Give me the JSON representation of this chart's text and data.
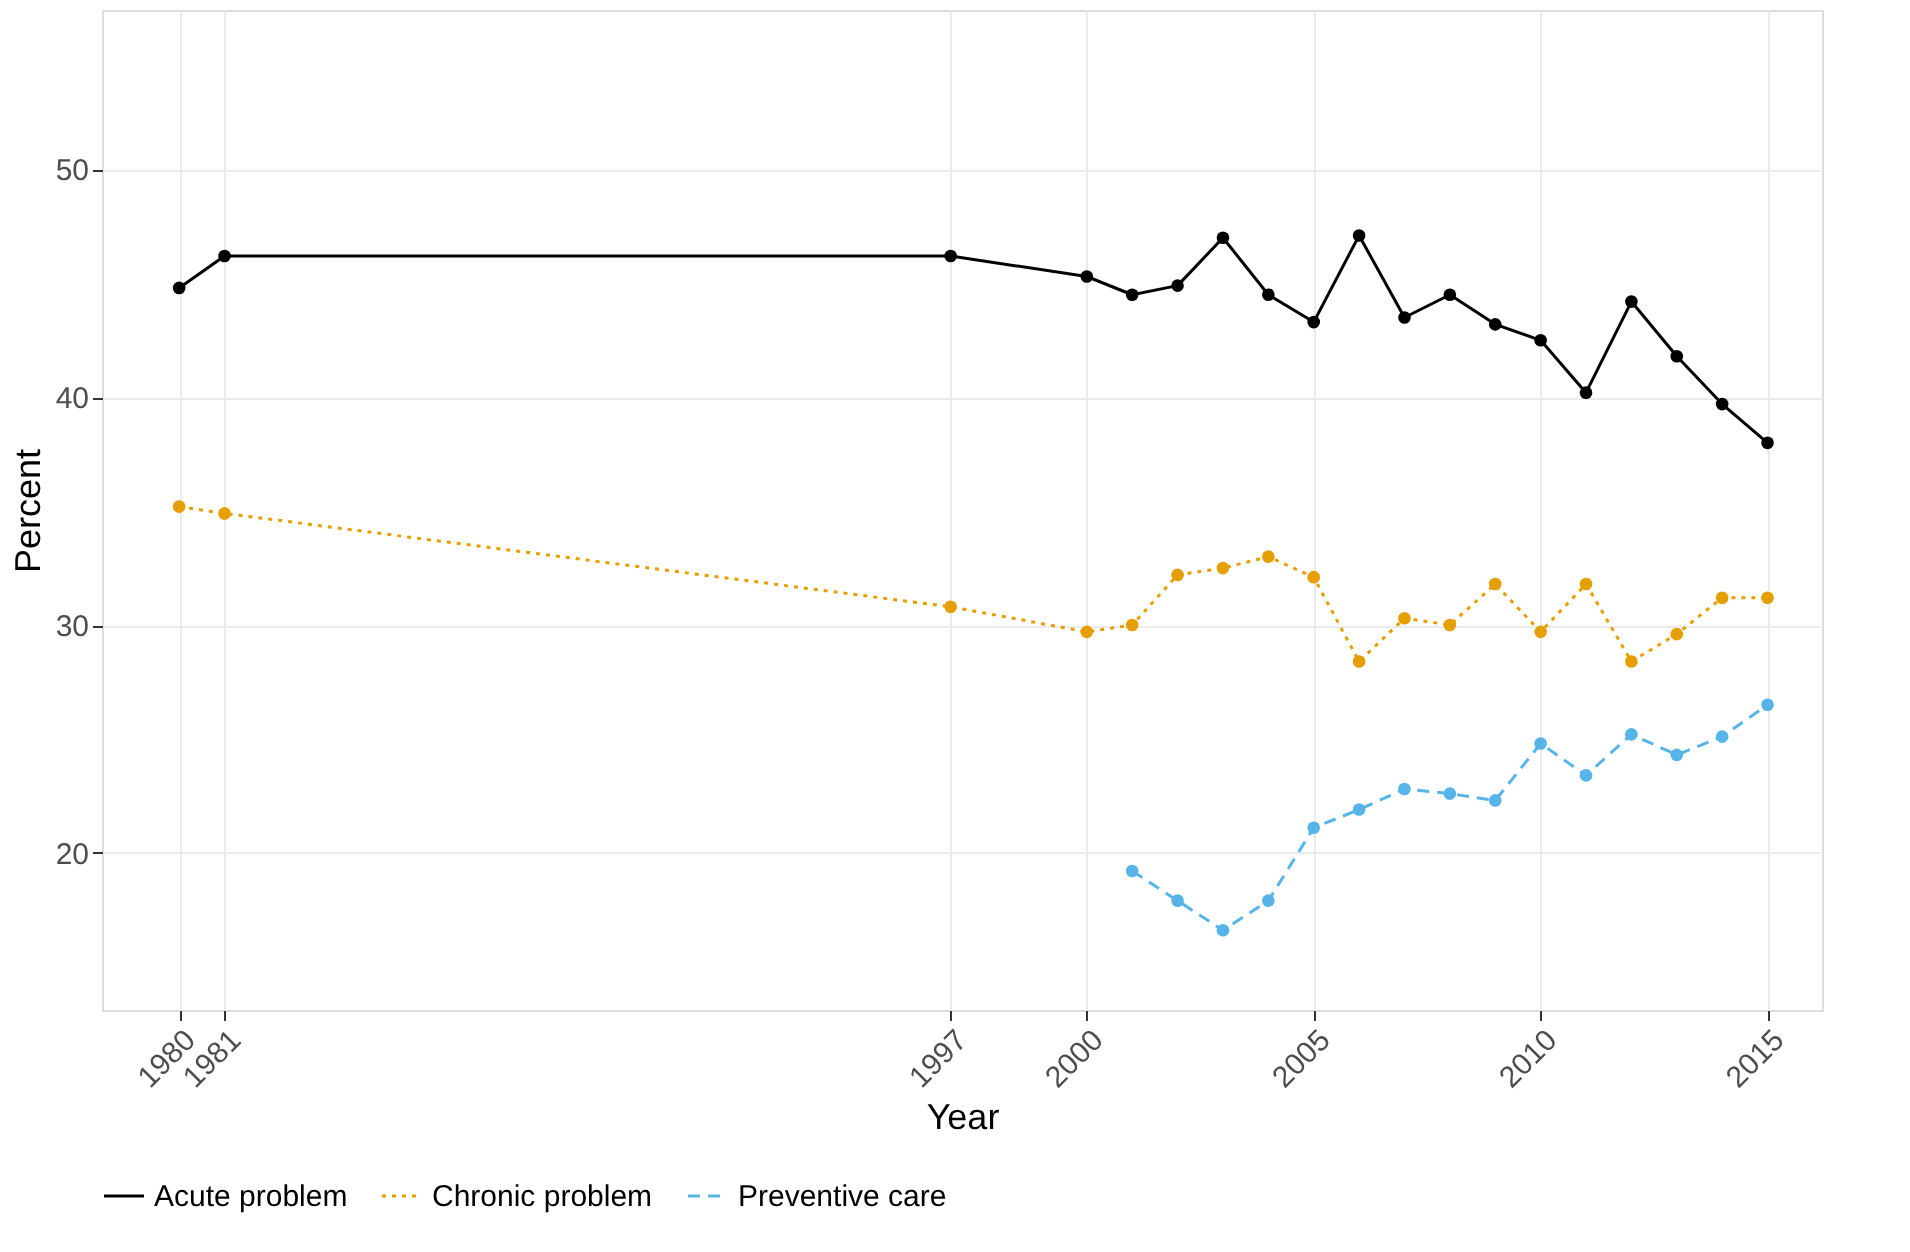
{
  "chart_data": {
    "type": "line",
    "xlabel": "Year",
    "ylabel": "Percent",
    "x": [
      1980,
      1981,
      1997,
      2000,
      2001,
      2002,
      2003,
      2004,
      2005,
      2006,
      2007,
      2008,
      2009,
      2010,
      2011,
      2012,
      2013,
      2014,
      2015
    ],
    "series": [
      {
        "name": "Acute problem",
        "color": "#000000",
        "line_style": "solid",
        "values": [
          44.8,
          46.2,
          46.2,
          45.3,
          44.5,
          44.9,
          47.0,
          44.5,
          43.3,
          47.1,
          43.5,
          44.5,
          43.2,
          42.5,
          40.2,
          44.2,
          41.8,
          39.7,
          38.0
        ]
      },
      {
        "name": "Chronic problem",
        "color": "#e69f00",
        "line_style": "dotted",
        "values": [
          35.2,
          34.9,
          30.8,
          29.7,
          30.0,
          32.2,
          32.5,
          33.0,
          32.1,
          28.4,
          30.3,
          30.0,
          31.8,
          29.7,
          31.8,
          28.4,
          29.6,
          31.2,
          31.2
        ]
      },
      {
        "name": "Preventive care",
        "color": "#56b4e9",
        "line_style": "dashed",
        "x": [
          2001,
          2002,
          2003,
          2004,
          2005,
          2006,
          2007,
          2008,
          2009,
          2010,
          2011,
          2012,
          2013,
          2014,
          2015
        ],
        "values": [
          19.2,
          17.9,
          16.6,
          17.9,
          21.1,
          21.9,
          22.8,
          22.6,
          22.3,
          24.8,
          23.4,
          25.2,
          24.3,
          25.1,
          26.5
        ]
      }
    ],
    "xlim": [
      1978.3,
      2016.2
    ],
    "xticks": [
      1980,
      1981,
      1997,
      2000,
      2005,
      2010,
      2015
    ],
    "ylim": [
      13.1,
      57.0
    ],
    "yticks": [
      20,
      30,
      40,
      50
    ],
    "grid": true,
    "legend": "bottom",
    "marker": "circle"
  }
}
